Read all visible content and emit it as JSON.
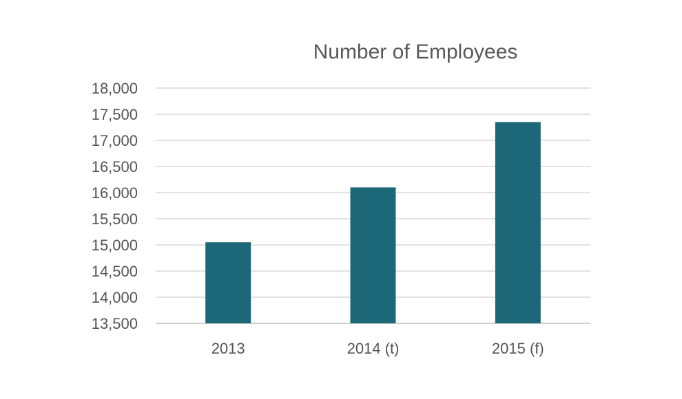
{
  "chart_data": {
    "type": "bar",
    "title": "Number of Employees",
    "xlabel": "",
    "ylabel": "",
    "categories": [
      "2013",
      "2014 (t)",
      "2015 (f)"
    ],
    "values": [
      15050,
      16100,
      17350
    ],
    "ylim": [
      13500,
      18000
    ],
    "yticks": [
      13500,
      14000,
      14500,
      15000,
      15500,
      16000,
      16500,
      17000,
      17500,
      18000
    ],
    "ytick_labels": [
      "13,500",
      "14,000",
      "14,500",
      "15,000",
      "15,500",
      "16,000",
      "16,500",
      "17,000",
      "17,500",
      "18,000"
    ],
    "grid": true,
    "legend": "none",
    "colors": {
      "bar": "#1d6878",
      "grid": "#d9d9d9",
      "text": "#595959"
    }
  }
}
